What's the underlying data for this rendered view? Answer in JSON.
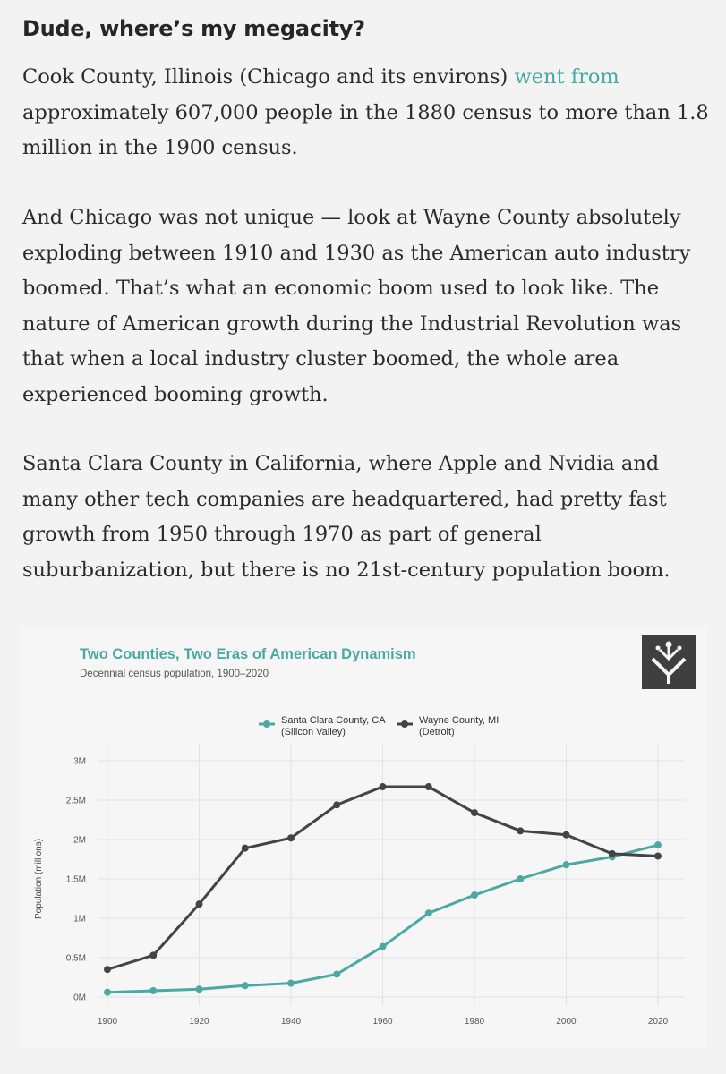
{
  "article": {
    "title": "Dude, where’s my megacity?",
    "p1": {
      "before": "Cook County, Illinois (Chicago and its environs) ",
      "link": "went from",
      "after": " approximately 607,000 people in the 1880 census to more than 1.8 million in the 1900 census."
    },
    "p2": "And Chicago was not unique — look at Wayne County absolutely exploding between 1910 and 1930 as the American auto industry boomed. That’s what an economic boom used to look like. The nature of American growth during the Industrial Revolution was that when a local industry cluster boomed, the whole area experienced booming growth.",
    "p3": "Santa Clara County in California, where Apple and Nvidia and many other tech companies are headquartered, had pretty fast growth from 1950 through 1970 as part of general suburbanization, but there is no 21st-century population boom."
  },
  "chart_data": {
    "type": "line",
    "title": "Two Counties, Two Eras of American Dynamism",
    "subtitle": "Decennial census population, 1900–2020",
    "xlabel": "",
    "ylabel": "Population (millions)",
    "x": [
      1900,
      1910,
      1920,
      1930,
      1940,
      1950,
      1960,
      1970,
      1980,
      1990,
      2000,
      2010,
      2020
    ],
    "xticks": [
      1900,
      1920,
      1940,
      1960,
      1980,
      2000,
      2020
    ],
    "yticks": [
      0,
      0.5,
      1,
      1.5,
      2,
      2.5,
      3
    ],
    "ytick_labels": [
      "0M",
      "0.5M",
      "1M",
      "1.5M",
      "2M",
      "2.5M",
      "3M"
    ],
    "xlim": [
      1900,
      2020
    ],
    "ylim": [
      0,
      3
    ],
    "grid": true,
    "legend_position": "top-center",
    "series": [
      {
        "name_line1": "Santa Clara County, CA",
        "name_line2": "(Silicon Valley)",
        "color": "#4aa9a2",
        "values": [
          0.06,
          0.08,
          0.1,
          0.145,
          0.175,
          0.29,
          0.64,
          1.065,
          1.295,
          1.5,
          1.68,
          1.78,
          1.93
        ]
      },
      {
        "name_line1": "Wayne County, MI",
        "name_line2": "(Detroit)",
        "color": "#444444",
        "values": [
          0.35,
          0.53,
          1.18,
          1.89,
          2.02,
          2.44,
          2.67,
          2.67,
          2.34,
          2.11,
          2.06,
          1.82,
          1.79
        ]
      }
    ]
  }
}
